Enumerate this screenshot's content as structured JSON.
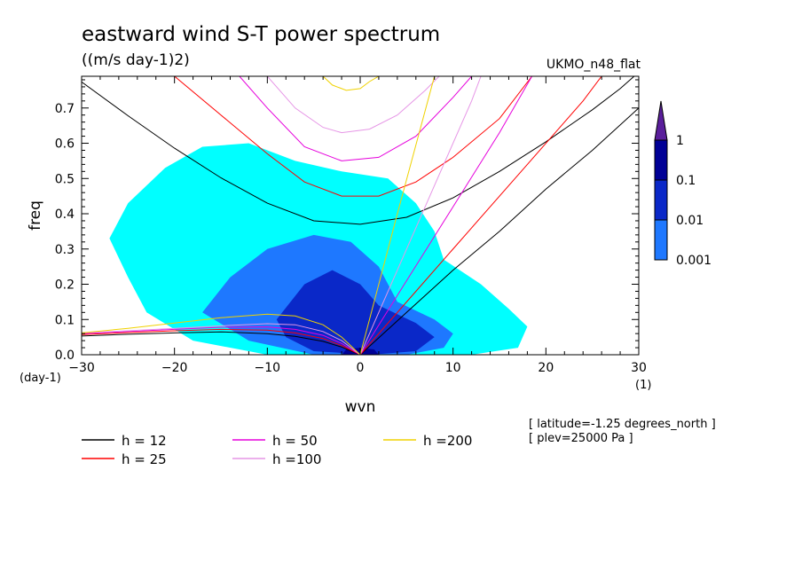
{
  "chart_data": {
    "type": "heatmap",
    "title": "eastward wind S-T power spectrum",
    "subtitle": "((m/s day-1)2)",
    "dataset_label": "UKMO_n48_flat",
    "xlabel": "wvn",
    "ylabel": "freq",
    "x_unit": "(1)",
    "y_unit": "(day-1)",
    "xlim": [
      -30,
      30
    ],
    "ylim": [
      0,
      0.79
    ],
    "xticks": [
      -30,
      -20,
      -10,
      0,
      10,
      20,
      30
    ],
    "yticks": [
      0.0,
      0.1,
      0.2,
      0.3,
      0.4,
      0.5,
      0.6,
      0.7
    ],
    "ytick_labels": [
      "0.0",
      "0.1",
      "0.2",
      "0.3",
      "0.4",
      "0.5",
      "0.6",
      "0.7"
    ],
    "colorbar": {
      "levels": [
        "0.001",
        "0.01",
        "0.1",
        "1"
      ],
      "colors": [
        "#00ffff",
        "#1e78ff",
        "#0a28c8",
        "#000096",
        "#5a1e9b"
      ]
    },
    "power_regions": [
      {
        "level": 1,
        "points": [
          [
            -21,
            0.53
          ],
          [
            -17,
            0.59
          ],
          [
            -12,
            0.6
          ],
          [
            -7,
            0.55
          ],
          [
            -2,
            0.52
          ],
          [
            3,
            0.5
          ],
          [
            6,
            0.43
          ],
          [
            8,
            0.35
          ],
          [
            9,
            0.27
          ],
          [
            13,
            0.2
          ],
          [
            16,
            0.13
          ],
          [
            18,
            0.08
          ],
          [
            17,
            0.02
          ],
          [
            12,
            0.0
          ],
          [
            -10,
            0.0
          ],
          [
            -18,
            0.04
          ],
          [
            -23,
            0.12
          ],
          [
            -25,
            0.22
          ],
          [
            -27,
            0.33
          ],
          [
            -25,
            0.43
          ]
        ]
      },
      {
        "level": 2,
        "points": [
          [
            -17,
            0.12
          ],
          [
            -14,
            0.22
          ],
          [
            -10,
            0.3
          ],
          [
            -5,
            0.34
          ],
          [
            -1,
            0.32
          ],
          [
            2,
            0.25
          ],
          [
            4,
            0.15
          ],
          [
            8,
            0.1
          ],
          [
            10,
            0.06
          ],
          [
            9,
            0.02
          ],
          [
            5,
            0.0
          ],
          [
            -5,
            0.0
          ],
          [
            -12,
            0.04
          ]
        ]
      },
      {
        "level": 3,
        "points": [
          [
            -9,
            0.1
          ],
          [
            -6,
            0.2
          ],
          [
            -3,
            0.24
          ],
          [
            0,
            0.2
          ],
          [
            2,
            0.14
          ],
          [
            6,
            0.09
          ],
          [
            8,
            0.05
          ],
          [
            6,
            0.01
          ],
          [
            1,
            0.0
          ],
          [
            -5,
            0.01
          ],
          [
            -8,
            0.05
          ]
        ]
      },
      {
        "level": 4,
        "points": [
          [
            -2,
            0.0
          ],
          [
            -1.5,
            0.015
          ],
          [
            0,
            0.02
          ],
          [
            1.5,
            0.015
          ],
          [
            2,
            0.0
          ]
        ]
      }
    ],
    "series": [
      {
        "name": "h = 12",
        "color": "#000000",
        "segments": [
          [
            [
              -30,
              0.774
            ],
            [
              -25,
              0.678
            ],
            [
              -20,
              0.586
            ],
            [
              -15,
              0.502
            ],
            [
              -10,
              0.43
            ],
            [
              -5,
              0.38
            ],
            [
              0,
              0.37
            ],
            [
              5,
              0.39
            ],
            [
              10,
              0.445
            ],
            [
              15,
              0.52
            ],
            [
              20,
              0.604
            ],
            [
              25,
              0.695
            ],
            [
              28,
              0.755
            ],
            [
              29.5,
              0.79
            ]
          ],
          [
            [
              0,
              0
            ],
            [
              5,
              0.12
            ],
            [
              10,
              0.24
            ],
            [
              15,
              0.35
            ],
            [
              20,
              0.47
            ],
            [
              25,
              0.58
            ],
            [
              30,
              0.7
            ]
          ],
          [
            [
              -30,
              0.053
            ],
            [
              -25,
              0.058
            ],
            [
              -20,
              0.062
            ],
            [
              -15,
              0.065
            ],
            [
              -10,
              0.06
            ],
            [
              -7,
              0.052
            ],
            [
              -4,
              0.038
            ],
            [
              -2,
              0.022
            ],
            [
              0,
              0
            ]
          ]
        ]
      },
      {
        "name": "h = 25",
        "color": "#ff0000",
        "segments": [
          [
            [
              -20,
              0.79
            ],
            [
              -15,
              0.68
            ],
            [
              -10,
              0.57
            ],
            [
              -6,
              0.49
            ],
            [
              -2,
              0.45
            ],
            [
              2,
              0.45
            ],
            [
              6,
              0.49
            ],
            [
              10,
              0.56
            ],
            [
              15,
              0.67
            ],
            [
              18.5,
              0.79
            ]
          ],
          [
            [
              0,
              0
            ],
            [
              6,
              0.18
            ],
            [
              12,
              0.36
            ],
            [
              18,
              0.54
            ],
            [
              24,
              0.72
            ],
            [
              26,
              0.79
            ]
          ],
          [
            [
              -30,
              0.057
            ],
            [
              -25,
              0.063
            ],
            [
              -20,
              0.068
            ],
            [
              -15,
              0.072
            ],
            [
              -10,
              0.07
            ],
            [
              -7,
              0.062
            ],
            [
              -4,
              0.046
            ],
            [
              -2,
              0.026
            ],
            [
              0,
              0
            ]
          ]
        ]
      },
      {
        "name": "h = 50",
        "color": "#e600dc",
        "segments": [
          [
            [
              -13,
              0.79
            ],
            [
              -10,
              0.7
            ],
            [
              -6,
              0.59
            ],
            [
              -2,
              0.55
            ],
            [
              2,
              0.56
            ],
            [
              6,
              0.62
            ],
            [
              10,
              0.73
            ],
            [
              12,
              0.79
            ]
          ],
          [
            [
              0,
              0
            ],
            [
              5,
              0.21
            ],
            [
              10,
              0.42
            ],
            [
              15,
              0.63
            ],
            [
              18.5,
              0.79
            ]
          ],
          [
            [
              -30,
              0.06
            ],
            [
              -25,
              0.066
            ],
            [
              -20,
              0.072
            ],
            [
              -15,
              0.078
            ],
            [
              -10,
              0.079
            ],
            [
              -7,
              0.072
            ],
            [
              -4,
              0.055
            ],
            [
              -2,
              0.032
            ],
            [
              0,
              0
            ]
          ]
        ]
      },
      {
        "name": "h =100",
        "color": "#e696e6",
        "segments": [
          [
            [
              -10,
              0.79
            ],
            [
              -7,
              0.7
            ],
            [
              -4,
              0.645
            ],
            [
              -2,
              0.63
            ],
            [
              1,
              0.64
            ],
            [
              4,
              0.68
            ],
            [
              7,
              0.75
            ],
            [
              8.5,
              0.79
            ]
          ],
          [
            [
              0,
              0
            ],
            [
              4,
              0.24
            ],
            [
              8,
              0.48
            ],
            [
              12,
              0.72
            ],
            [
              13,
              0.79
            ]
          ],
          [
            [
              -30,
              0.062
            ],
            [
              -25,
              0.068
            ],
            [
              -20,
              0.075
            ],
            [
              -15,
              0.082
            ],
            [
              -10,
              0.088
            ],
            [
              -7,
              0.085
            ],
            [
              -4,
              0.066
            ],
            [
              -2,
              0.04
            ],
            [
              0,
              0
            ]
          ]
        ]
      },
      {
        "name": "h =200",
        "color": "#f0d200",
        "segments": [
          [
            [
              -4,
              0.79
            ],
            [
              -3,
              0.765
            ],
            [
              -1.5,
              0.75
            ],
            [
              0,
              0.755
            ],
            [
              1,
              0.775
            ],
            [
              2,
              0.79
            ]
          ],
          [
            [
              0,
              0
            ],
            [
              4,
              0.4
            ],
            [
              8,
              0.79
            ]
          ],
          [
            [
              -30,
              0.062
            ],
            [
              -25,
              0.075
            ],
            [
              -20,
              0.09
            ],
            [
              -15,
              0.105
            ],
            [
              -10,
              0.115
            ],
            [
              -7,
              0.11
            ],
            [
              -4,
              0.085
            ],
            [
              -2,
              0.05
            ],
            [
              0,
              0
            ]
          ]
        ]
      }
    ]
  },
  "info": {
    "latitude": "[ latitude=-1.25 degrees_north ]",
    "plev": "[ plev=25000 Pa ]"
  }
}
